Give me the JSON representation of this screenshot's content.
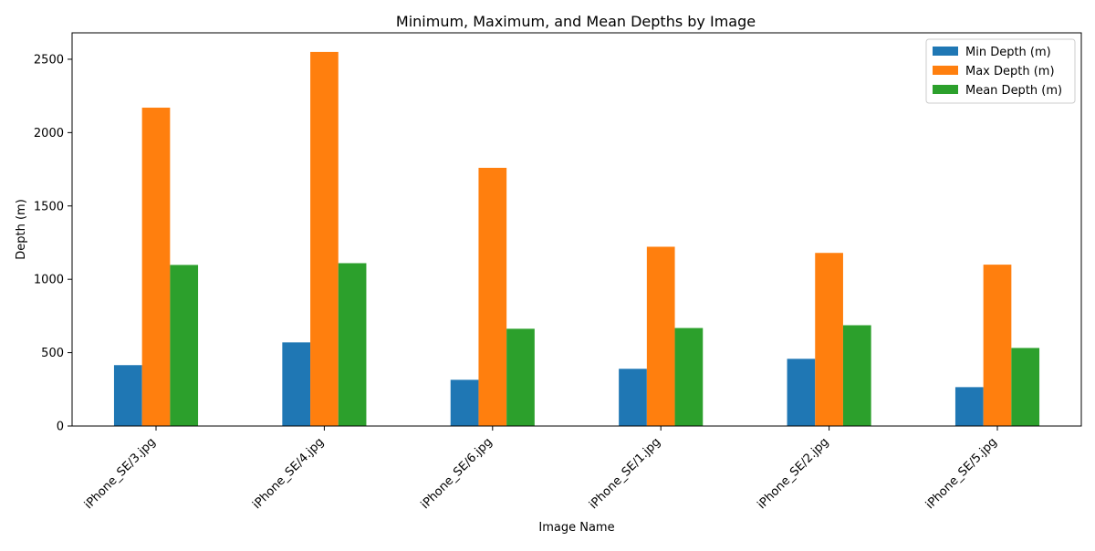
{
  "chart_data": {
    "type": "bar",
    "title": "Minimum, Maximum, and Mean Depths by Image",
    "xlabel": "Image Name",
    "ylabel": "Depth (m)",
    "categories": [
      "iPhone_SE/3.jpg",
      "iPhone_SE/4.jpg",
      "iPhone_SE/6.jpg",
      "iPhone_SE/1.jpg",
      "iPhone_SE/2.jpg",
      "iPhone_SE/5.jpg"
    ],
    "series": [
      {
        "name": "Min Depth (m)",
        "color": "#1f77b4",
        "values": [
          415,
          570,
          315,
          390,
          458,
          265
        ]
      },
      {
        "name": "Max Depth (m)",
        "color": "#ff7f0e",
        "values": [
          2170,
          2550,
          1760,
          1222,
          1180,
          1100
        ]
      },
      {
        "name": "Mean Depth (m)",
        "color": "#2ca02c",
        "values": [
          1098,
          1110,
          663,
          668,
          687,
          532
        ]
      }
    ],
    "yticks": [
      0,
      500,
      1000,
      1500,
      2000,
      2500
    ],
    "ylim": [
      0,
      2680
    ],
    "grid": false,
    "legend": "top-right"
  }
}
